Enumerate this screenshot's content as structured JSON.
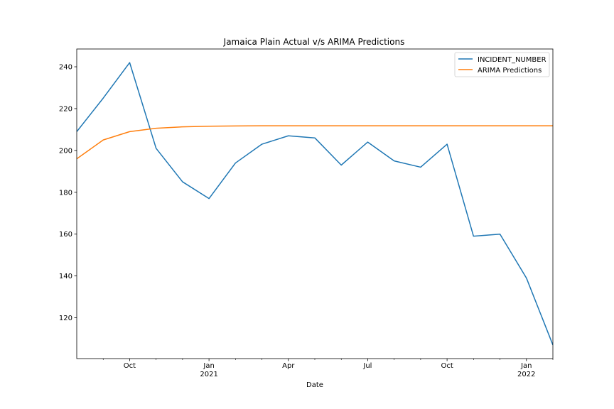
{
  "chart_data": {
    "type": "line",
    "title": "Jamaica Plain Actual v/s ARIMA Predictions",
    "xlabel": "Date",
    "ylabel": "",
    "ylim": [
      100.5,
      248.5
    ],
    "yticks": [
      120,
      140,
      160,
      180,
      200,
      220,
      240
    ],
    "x_index": [
      0,
      1,
      2,
      3,
      4,
      5,
      6,
      7,
      8,
      9,
      10,
      11,
      12,
      13,
      14,
      15,
      16,
      17,
      18
    ],
    "x_months": [
      "2020-08",
      "2020-09",
      "2020-10",
      "2020-11",
      "2020-12",
      "2021-01",
      "2021-02",
      "2021-03",
      "2021-04",
      "2021-05",
      "2021-06",
      "2021-07",
      "2021-08",
      "2021-09",
      "2021-10",
      "2021-11",
      "2021-12",
      "2022-01",
      "2022-02"
    ],
    "xlim": [
      0,
      18
    ],
    "major_ticks": [
      {
        "i": 2,
        "label": "Oct",
        "sub": ""
      },
      {
        "i": 5,
        "label": "Jan",
        "sub": "2021"
      },
      {
        "i": 8,
        "label": "Apr",
        "sub": ""
      },
      {
        "i": 11,
        "label": "Jul",
        "sub": ""
      },
      {
        "i": 14,
        "label": "Oct",
        "sub": ""
      },
      {
        "i": 17,
        "label": "Jan",
        "sub": "2022"
      }
    ],
    "minor_ticks": [
      1,
      3,
      4,
      6,
      7,
      9,
      10,
      12,
      13,
      15,
      16,
      18
    ],
    "series": [
      {
        "name": "INCIDENT_NUMBER",
        "color": "#1f77b4",
        "values": [
          209,
          225,
          242,
          201,
          185,
          177,
          194,
          203,
          207,
          206,
          193,
          204,
          195,
          192,
          203,
          159,
          160,
          139,
          107
        ]
      },
      {
        "name": "ARIMA Predictions",
        "color": "#ff7f0e",
        "values": [
          196,
          205,
          209,
          210.6,
          211.3,
          211.6,
          211.7,
          211.8,
          211.8,
          211.8,
          211.8,
          211.8,
          211.8,
          211.8,
          211.8,
          211.8,
          211.8,
          211.8,
          211.8
        ]
      }
    ],
    "legend": {
      "position": "top-right"
    }
  }
}
